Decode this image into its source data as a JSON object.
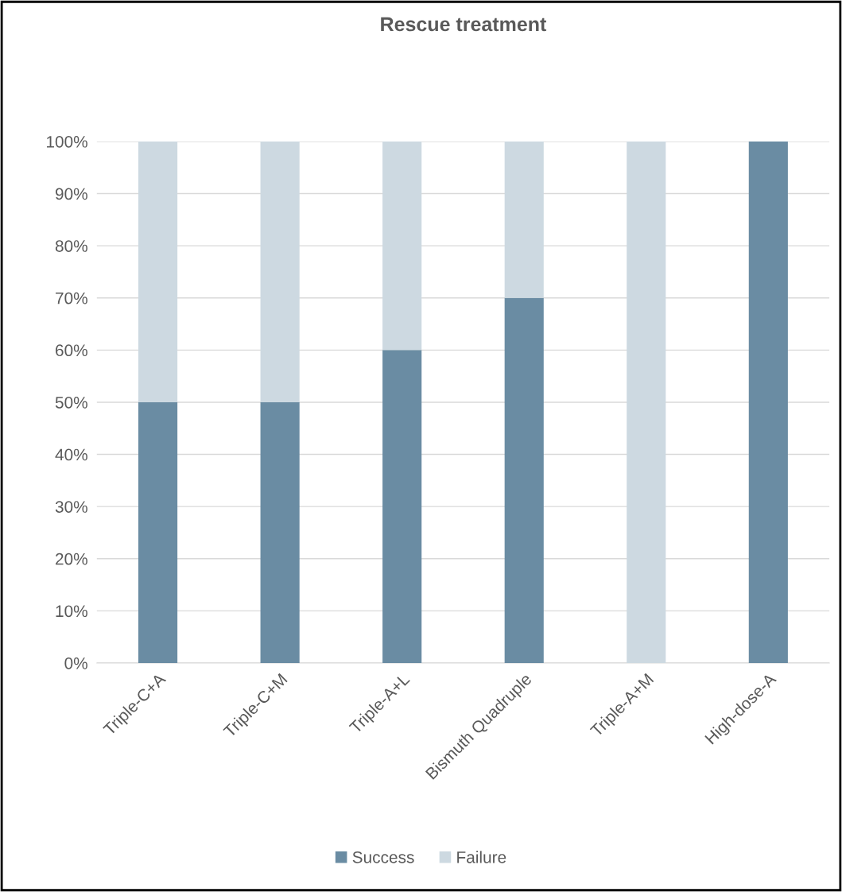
{
  "chart_data": {
    "type": "bar",
    "title": "Rescue treatment",
    "stacked": true,
    "categories": [
      "Triple-C+A",
      "Triple-C+M",
      "Triple-A+L",
      "Bismuth Quadruple",
      "Triple-A+M",
      "High-dose-A"
    ],
    "series": [
      {
        "name": "Success",
        "color": "#6a8ca3",
        "values": [
          50,
          50,
          60,
          70,
          0,
          100
        ]
      },
      {
        "name": "Failure",
        "color": "#cdd9e1",
        "values": [
          50,
          50,
          40,
          30,
          100,
          0
        ]
      }
    ],
    "ylim": [
      0,
      100
    ],
    "yticks": [
      {
        "value": 0,
        "label": "0%"
      },
      {
        "value": 10,
        "label": "10%"
      },
      {
        "value": 20,
        "label": "20%"
      },
      {
        "value": 30,
        "label": "30%"
      },
      {
        "value": 40,
        "label": "40%"
      },
      {
        "value": 50,
        "label": "50%"
      },
      {
        "value": 60,
        "label": "60%"
      },
      {
        "value": 70,
        "label": "70%"
      },
      {
        "value": 80,
        "label": "80%"
      },
      {
        "value": 90,
        "label": "90%"
      },
      {
        "value": 100,
        "label": "100%"
      }
    ],
    "grid": "y",
    "legend": "bottom"
  }
}
